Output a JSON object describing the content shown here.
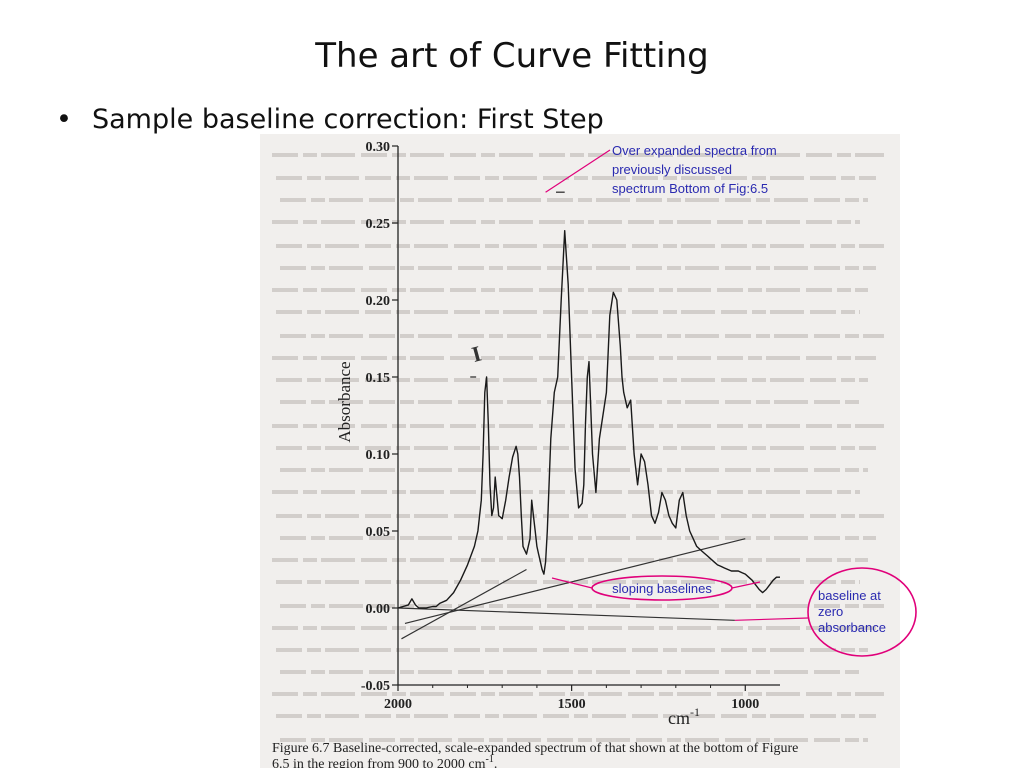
{
  "slide": {
    "title": "The art of Curve Fitting",
    "bullet": "Sample baseline correction: First Step"
  },
  "colors": {
    "annotation": "#e0007a",
    "annotation_text": "#2a2ab0",
    "ink": "#222222",
    "paper": "#f1efed"
  },
  "chart_data": {
    "type": "line",
    "xlabel": "cm-1",
    "ylabel": "Absorbance",
    "x_reversed": true,
    "xlim": [
      2000,
      900
    ],
    "ylim": [
      -0.05,
      0.3
    ],
    "x_ticks": [
      "2000",
      "1500",
      "1000"
    ],
    "y_ticks": [
      "0.30",
      "0.25",
      "0.20",
      "0.15",
      "0.10",
      "0.05",
      "0.00",
      "-0.05"
    ],
    "series": [
      {
        "x": [
          2000,
          1970,
          1960,
          1950,
          1940,
          1920,
          1900,
          1890,
          1880,
          1860,
          1840,
          1820,
          1800,
          1780,
          1770,
          1760,
          1755,
          1750,
          1745,
          1740,
          1735,
          1730,
          1725,
          1720,
          1710,
          1700,
          1690,
          1680,
          1670,
          1660,
          1655,
          1650,
          1645,
          1640,
          1630,
          1620,
          1615,
          1610,
          1605,
          1600,
          1595,
          1590,
          1585,
          1580,
          1575,
          1570,
          1560,
          1550,
          1540,
          1530,
          1520,
          1510,
          1500,
          1490,
          1480,
          1470,
          1465,
          1460,
          1455,
          1450,
          1440,
          1430,
          1420,
          1410,
          1400,
          1390,
          1380,
          1370,
          1360,
          1355,
          1350,
          1340,
          1330,
          1320,
          1310,
          1300,
          1290,
          1280,
          1270,
          1260,
          1250,
          1240,
          1230,
          1220,
          1210,
          1200,
          1190,
          1180,
          1170,
          1160,
          1150,
          1140,
          1130,
          1120,
          1110,
          1100,
          1090,
          1080,
          1070,
          1060,
          1050,
          1040,
          1030,
          1020,
          1010,
          1000,
          990,
          980,
          970,
          960,
          950,
          940,
          930,
          920,
          910,
          900
        ],
        "y": [
          0.0,
          0.002,
          0.006,
          0.002,
          0.0,
          0.0,
          0.001,
          0.001,
          0.003,
          0.005,
          0.01,
          0.018,
          0.028,
          0.04,
          0.05,
          0.07,
          0.1,
          0.14,
          0.15,
          0.12,
          0.08,
          0.06,
          0.065,
          0.085,
          0.06,
          0.058,
          0.07,
          0.085,
          0.098,
          0.105,
          0.1,
          0.085,
          0.06,
          0.04,
          0.035,
          0.045,
          0.07,
          0.06,
          0.05,
          0.04,
          0.035,
          0.03,
          0.025,
          0.022,
          0.03,
          0.05,
          0.11,
          0.14,
          0.15,
          0.2,
          0.245,
          0.21,
          0.15,
          0.09,
          0.065,
          0.068,
          0.08,
          0.12,
          0.15,
          0.16,
          0.1,
          0.075,
          0.11,
          0.125,
          0.14,
          0.19,
          0.205,
          0.2,
          0.17,
          0.15,
          0.14,
          0.13,
          0.135,
          0.1,
          0.08,
          0.1,
          0.095,
          0.08,
          0.06,
          0.055,
          0.062,
          0.075,
          0.07,
          0.06,
          0.055,
          0.052,
          0.07,
          0.075,
          0.06,
          0.05,
          0.045,
          0.04,
          0.038,
          0.036,
          0.034,
          0.032,
          0.03,
          0.028,
          0.027,
          0.026,
          0.025,
          0.024,
          0.024,
          0.024,
          0.023,
          0.022,
          0.02,
          0.018,
          0.015,
          0.012,
          0.01,
          0.012,
          0.015,
          0.018,
          0.02,
          0.02
        ]
      }
    ],
    "baselines": [
      {
        "label": "sloping baselines",
        "from": [
          1990,
          -0.02
        ],
        "to": [
          1630,
          0.025
        ]
      },
      {
        "label": "sloping baselines",
        "from": [
          1980,
          -0.01
        ],
        "to": [
          1000,
          0.045
        ]
      },
      {
        "label": "baseline at zero absorbance",
        "from": [
          2000,
          0.0
        ],
        "to": [
          1030,
          -0.008
        ]
      }
    ],
    "annotations": [
      {
        "id": "over-expanded",
        "text": [
          "Over expanded spectra from",
          "previously discussed",
          "spectrum Bottom of Fig:6.5"
        ],
        "points_to": [
          1575,
          0.27
        ]
      },
      {
        "id": "sloping",
        "text": [
          "sloping baselines"
        ]
      },
      {
        "id": "zero",
        "text": [
          "baseline at",
          "zero",
          "absorbance"
        ]
      }
    ],
    "scan_marks": {
      "bracket_label": "I"
    },
    "caption": [
      "Figure 6.7  Baseline-corrected, scale-expanded spectrum of that shown at the bottom of Figure",
      "6.5 in the region from 900 to 2000 cm"
    ],
    "caption_superscript": "-1",
    "caption_tail": "."
  }
}
